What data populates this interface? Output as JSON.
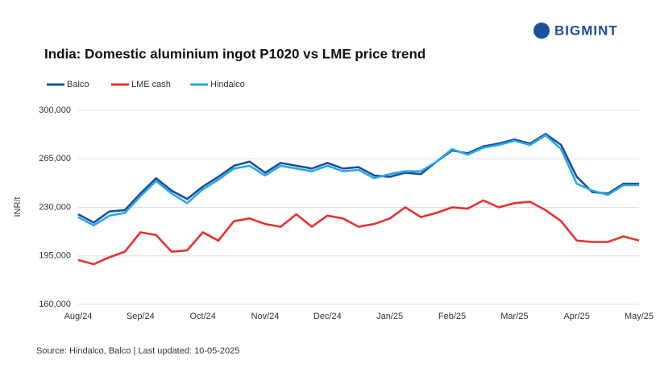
{
  "brand": "BIGMINT",
  "chart_data": {
    "type": "line",
    "title": "India: Domestic aluminium ingot P1020 vs LME price trend",
    "y_label": "INR/t",
    "source": "Source: Hindalco, Balco | Last updated: 10-05-2025",
    "categories": [
      "Aug/24",
      null,
      null,
      null,
      "Sep/24",
      null,
      null,
      null,
      "Oct/24",
      null,
      null,
      null,
      "Nov/24",
      null,
      null,
      null,
      "Dec/24",
      null,
      null,
      null,
      "Jan/25",
      null,
      null,
      null,
      "Feb/25",
      null,
      null,
      null,
      "Mar/25",
      null,
      null,
      null,
      "Apr/25",
      null,
      null,
      null,
      "May/25"
    ],
    "series": [
      {
        "name": "Balco",
        "color": "#1c4f9c",
        "values": [
          225000,
          219000,
          227000,
          228000,
          240000,
          251000,
          242000,
          236000,
          245000,
          252000,
          260000,
          263000,
          255000,
          262000,
          260000,
          258000,
          262000,
          258000,
          259000,
          253000,
          252000,
          255000,
          254000,
          263000,
          271000,
          269000,
          274000,
          276000,
          279000,
          276000,
          283000,
          275000,
          252000,
          241000,
          240000,
          247000,
          247000
        ]
      },
      {
        "name": "LME cash",
        "color": "#e8312f",
        "values": [
          192000,
          189000,
          194000,
          198000,
          212000,
          210000,
          198000,
          199000,
          212000,
          206000,
          220000,
          222000,
          218000,
          216000,
          225000,
          216000,
          224000,
          222000,
          216000,
          218000,
          222000,
          230000,
          223000,
          226000,
          230000,
          229000,
          235000,
          230000,
          233000,
          234000,
          228000,
          220000,
          206000,
          205000,
          205000,
          209000,
          206000
        ]
      },
      {
        "name": "Hindalco",
        "color": "#29a9e1",
        "values": [
          223000,
          217000,
          224000,
          226000,
          238000,
          249000,
          240000,
          233000,
          243000,
          250000,
          258000,
          260000,
          253000,
          260000,
          258000,
          256000,
          260000,
          256000,
          257000,
          251000,
          254000,
          256000,
          256000,
          263000,
          272000,
          268000,
          273000,
          275000,
          278000,
          275000,
          282000,
          272000,
          247000,
          242000,
          239000,
          246000,
          246000
        ]
      }
    ],
    "ylim": [
      160000,
      300000
    ],
    "yticks": [
      {
        "value": 160000,
        "label": "160,000"
      },
      {
        "value": 195000,
        "label": "195,000"
      },
      {
        "value": 230000,
        "label": "230,000"
      },
      {
        "value": 265000,
        "label": "265,000"
      },
      {
        "value": 300000,
        "label": "300,000"
      }
    ],
    "grid": true
  }
}
